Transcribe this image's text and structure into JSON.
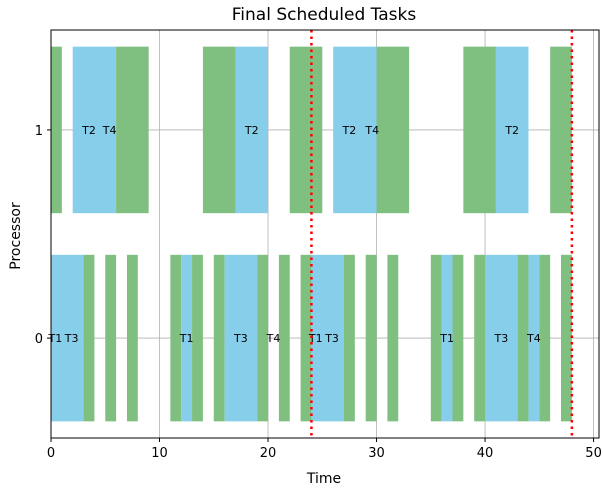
{
  "chart_data": {
    "type": "gantt",
    "title": "Final Scheduled Tasks",
    "xlabel": "Time",
    "ylabel": "Processor",
    "xlim": [
      0,
      50.5
    ],
    "ylim": [
      -0.48,
      1.48
    ],
    "xticks": [
      0,
      10,
      20,
      30,
      40,
      50
    ],
    "yticks": [
      0,
      1
    ],
    "grid": true,
    "bar_half_height": 0.4,
    "colors": {
      "blue": "#87ceeb",
      "green": "#7fbf7f",
      "deadline": "#ff0000",
      "grid": "#b0b0b0"
    },
    "deadlines": [
      24,
      48
    ],
    "segments": [
      {
        "processor": 1,
        "start": 0,
        "end": 1,
        "color": "green"
      },
      {
        "processor": 1,
        "start": 2,
        "end": 6,
        "color": "blue"
      },
      {
        "processor": 1,
        "start": 6,
        "end": 9,
        "color": "green"
      },
      {
        "processor": 1,
        "start": 14,
        "end": 17,
        "color": "green"
      },
      {
        "processor": 1,
        "start": 17,
        "end": 20,
        "color": "blue"
      },
      {
        "processor": 1,
        "start": 22,
        "end": 25,
        "color": "green"
      },
      {
        "processor": 1,
        "start": 26,
        "end": 30,
        "color": "blue"
      },
      {
        "processor": 1,
        "start": 30,
        "end": 33,
        "color": "green"
      },
      {
        "processor": 1,
        "start": 38,
        "end": 41,
        "color": "green"
      },
      {
        "processor": 1,
        "start": 41,
        "end": 44,
        "color": "blue"
      },
      {
        "processor": 1,
        "start": 46,
        "end": 48,
        "color": "green"
      },
      {
        "processor": 0,
        "start": 0,
        "end": 3,
        "color": "blue"
      },
      {
        "processor": 0,
        "start": 3,
        "end": 4,
        "color": "green"
      },
      {
        "processor": 0,
        "start": 5,
        "end": 6,
        "color": "green"
      },
      {
        "processor": 0,
        "start": 7,
        "end": 8,
        "color": "green"
      },
      {
        "processor": 0,
        "start": 11,
        "end": 12,
        "color": "green"
      },
      {
        "processor": 0,
        "start": 12,
        "end": 13,
        "color": "blue"
      },
      {
        "processor": 0,
        "start": 13,
        "end": 14,
        "color": "green"
      },
      {
        "processor": 0,
        "start": 15,
        "end": 16,
        "color": "green"
      },
      {
        "processor": 0,
        "start": 16,
        "end": 19,
        "color": "blue"
      },
      {
        "processor": 0,
        "start": 19,
        "end": 20,
        "color": "green"
      },
      {
        "processor": 0,
        "start": 21,
        "end": 22,
        "color": "green"
      },
      {
        "processor": 0,
        "start": 23,
        "end": 24,
        "color": "green"
      },
      {
        "processor": 0,
        "start": 24,
        "end": 27,
        "color": "blue"
      },
      {
        "processor": 0,
        "start": 27,
        "end": 28,
        "color": "green"
      },
      {
        "processor": 0,
        "start": 29,
        "end": 30,
        "color": "green"
      },
      {
        "processor": 0,
        "start": 31,
        "end": 32,
        "color": "green"
      },
      {
        "processor": 0,
        "start": 35,
        "end": 36,
        "color": "green"
      },
      {
        "processor": 0,
        "start": 36,
        "end": 37,
        "color": "blue"
      },
      {
        "processor": 0,
        "start": 37,
        "end": 38,
        "color": "green"
      },
      {
        "processor": 0,
        "start": 39,
        "end": 40,
        "color": "green"
      },
      {
        "processor": 0,
        "start": 40,
        "end": 43,
        "color": "blue"
      },
      {
        "processor": 0,
        "start": 43,
        "end": 44,
        "color": "green"
      },
      {
        "processor": 0,
        "start": 44,
        "end": 45,
        "color": "blue"
      },
      {
        "processor": 0,
        "start": 45,
        "end": 46,
        "color": "green"
      },
      {
        "processor": 0,
        "start": 47,
        "end": 48,
        "color": "green"
      }
    ],
    "labels": [
      {
        "processor": 1,
        "x": 3.5,
        "text": "T2"
      },
      {
        "processor": 1,
        "x": 5.4,
        "text": "T4"
      },
      {
        "processor": 1,
        "x": 18.5,
        "text": "T2"
      },
      {
        "processor": 1,
        "x": 27.5,
        "text": "T2"
      },
      {
        "processor": 1,
        "x": 29.6,
        "text": "T4"
      },
      {
        "processor": 1,
        "x": 42.5,
        "text": "T2"
      },
      {
        "processor": 0,
        "x": 0.4,
        "text": "T1"
      },
      {
        "processor": 0,
        "x": 1.9,
        "text": "T3"
      },
      {
        "processor": 0,
        "x": 12.5,
        "text": "T1"
      },
      {
        "processor": 0,
        "x": 17.5,
        "text": "T3"
      },
      {
        "processor": 0,
        "x": 20.5,
        "text": "T4"
      },
      {
        "processor": 0,
        "x": 24.4,
        "text": "T1"
      },
      {
        "processor": 0,
        "x": 25.9,
        "text": "T3"
      },
      {
        "processor": 0,
        "x": 36.5,
        "text": "T1"
      },
      {
        "processor": 0,
        "x": 41.5,
        "text": "T3"
      },
      {
        "processor": 0,
        "x": 44.5,
        "text": "T4"
      }
    ]
  }
}
